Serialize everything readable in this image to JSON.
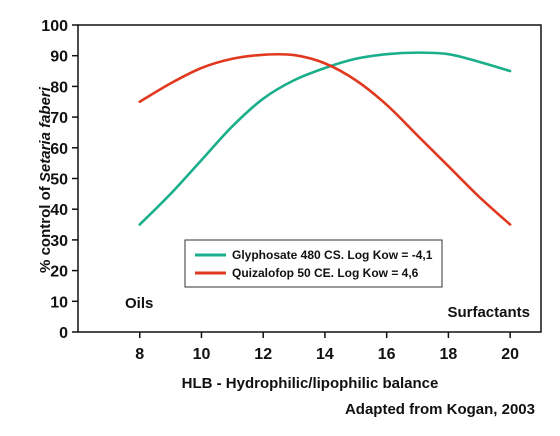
{
  "chart_data": {
    "type": "line",
    "xlabel": "HLB - Hydrophilic/lipophilic balance",
    "ylabel_prefix": "% control of ",
    "ylabel_italic": "Setaria faberi",
    "xlim": [
      6,
      21
    ],
    "ylim": [
      0,
      100
    ],
    "x_ticks": [
      8,
      10,
      12,
      14,
      16,
      18,
      20
    ],
    "y_ticks": [
      0,
      10,
      20,
      30,
      40,
      50,
      60,
      70,
      80,
      90,
      100
    ],
    "series": [
      {
        "name": "Glyphosate 480 CS. Log Kow = -4,1",
        "color": "#1aaf8b",
        "x": [
          8,
          9,
          10,
          11,
          12,
          13,
          14,
          15,
          16,
          17,
          18,
          19,
          20
        ],
        "y": [
          35,
          45,
          56,
          67,
          76,
          82,
          86,
          89,
          90.5,
          91,
          90.5,
          88,
          85
        ]
      },
      {
        "name": "Quizalofop 50 CE. Log Kow = 4,6",
        "color": "#e0391f",
        "x": [
          8,
          9,
          10,
          11,
          12,
          13,
          14,
          15,
          16,
          17,
          18,
          19,
          20
        ],
        "y": [
          75,
          81,
          86,
          89,
          90.3,
          90.2,
          87.5,
          82,
          74,
          64,
          54,
          44,
          35
        ]
      }
    ],
    "annotations": {
      "left": "Oils",
      "right": "Surfactants"
    },
    "legend_placement": "center",
    "grid": false
  },
  "source_note": "Adapted from Kogan, 2003"
}
